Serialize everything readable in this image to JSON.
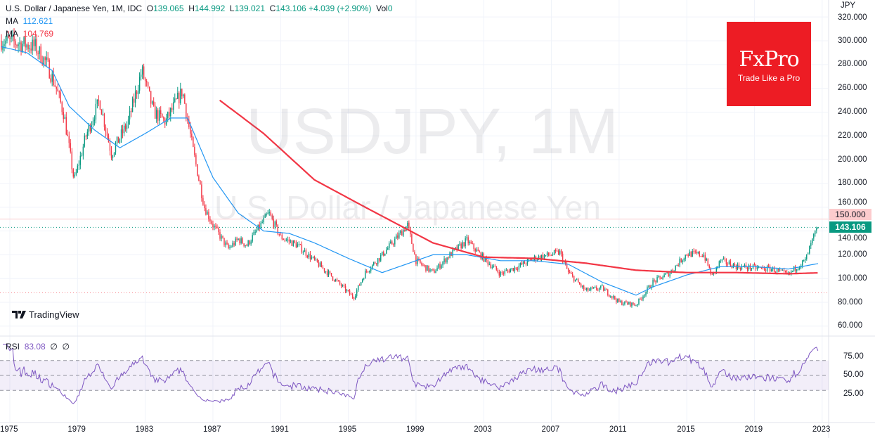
{
  "header": {
    "symbol": "U.S. Dollar / Japanese Yen, 1M, IDC",
    "open_label": "O",
    "open": "139.065",
    "high_label": "H",
    "high": "144.992",
    "low_label": "L",
    "low": "139.021",
    "close_label": "C",
    "close": "143.106",
    "change": "+4.039 (+2.90%)",
    "vol_label": "Vol",
    "vol": "0",
    "ma1_label": "MA",
    "ma1": "112.621",
    "ma2_label": "MA",
    "ma2": "104.769",
    "rsi_label": "RSI",
    "rsi": "83.08",
    "rsi_na1": "∅",
    "rsi_na2": "∅"
  },
  "watermark": {
    "line1": "USDJPY, 1M",
    "line2": "U.S. Dollar / Japanese Yen"
  },
  "logo": {
    "brand": "FxPro",
    "tagline": "Trade Like a Pro"
  },
  "tradingview": {
    "label": "TradingView"
  },
  "colors": {
    "up": "#089981",
    "down": "#f23645",
    "ma1": "#2196f3",
    "ma2": "#f23645",
    "rsi": "#7e57c2",
    "logo_bg": "#ed1c24"
  },
  "chart_data": {
    "type": "candlestick",
    "title": "USDJPY, 1M",
    "currency": "JPY",
    "price_axis": {
      "ticks": [
        "320.000",
        "300.000",
        "280.000",
        "260.000",
        "240.000",
        "220.000",
        "200.000",
        "180.000",
        "160.000",
        "140.000",
        "120.000",
        "100.000",
        "80.000",
        "60.000"
      ],
      "range": [
        55,
        322
      ]
    },
    "time_axis": {
      "ticks": [
        "1975",
        "1979",
        "1983",
        "1987",
        "1991",
        "1995",
        "1999",
        "2003",
        "2007",
        "2011",
        "2015",
        "2019",
        "2023"
      ]
    },
    "price_tags": {
      "alert": "150.000",
      "last": "143.106"
    },
    "close_keypoints": [
      [
        1974.5,
        300
      ],
      [
        1975.5,
        298
      ],
      [
        1976.5,
        295
      ],
      [
        1977.2,
        280
      ],
      [
        1977.7,
        262
      ],
      [
        1978.2,
        238
      ],
      [
        1978.8,
        182
      ],
      [
        1979.5,
        220
      ],
      [
        1980.3,
        250
      ],
      [
        1981.0,
        205
      ],
      [
        1982.0,
        232
      ],
      [
        1982.8,
        275
      ],
      [
        1983.5,
        240
      ],
      [
        1984.2,
        232
      ],
      [
        1985.2,
        258
      ],
      [
        1985.8,
        210
      ],
      [
        1986.5,
        160
      ],
      [
        1987.0,
        145
      ],
      [
        1987.9,
        125
      ],
      [
        1988.5,
        133
      ],
      [
        1989.0,
        128
      ],
      [
        1990.3,
        155
      ],
      [
        1991.0,
        135
      ],
      [
        1992.0,
        128
      ],
      [
        1993.0,
        115
      ],
      [
        1994.0,
        102
      ],
      [
        1995.3,
        84
      ],
      [
        1996.0,
        105
      ],
      [
        1997.0,
        120
      ],
      [
        1998.5,
        145
      ],
      [
        1999.0,
        115
      ],
      [
        2000.0,
        105
      ],
      [
        2001.0,
        120
      ],
      [
        2002.0,
        132
      ],
      [
        2003.0,
        117
      ],
      [
        2004.0,
        104
      ],
      [
        2005.0,
        110
      ],
      [
        2006.0,
        117
      ],
      [
        2007.5,
        122
      ],
      [
        2008.0,
        105
      ],
      [
        2009.0,
        90
      ],
      [
        2010.0,
        92
      ],
      [
        2011.0,
        80
      ],
      [
        2012.0,
        78
      ],
      [
        2013.0,
        97
      ],
      [
        2014.0,
        105
      ],
      [
        2015.0,
        121
      ],
      [
        2016.0,
        120
      ],
      [
        2016.5,
        102
      ],
      [
        2017.0,
        115
      ],
      [
        2018.0,
        110
      ],
      [
        2019.0,
        109
      ],
      [
        2020.0,
        108
      ],
      [
        2021.0,
        103
      ],
      [
        2021.5,
        110
      ],
      [
        2022.0,
        115
      ],
      [
        2022.5,
        135
      ],
      [
        2022.75,
        143.1
      ]
    ],
    "ma1_keypoints": [
      [
        1974.5,
        295
      ],
      [
        1976,
        290
      ],
      [
        1977.5,
        275
      ],
      [
        1978.5,
        245
      ],
      [
        1980,
        225
      ],
      [
        1981.5,
        210
      ],
      [
        1983,
        222
      ],
      [
        1984.5,
        235
      ],
      [
        1985.5,
        235
      ],
      [
        1987,
        185
      ],
      [
        1988.5,
        155
      ],
      [
        1990,
        140
      ],
      [
        1991.5,
        138
      ],
      [
        1993,
        130
      ],
      [
        1995,
        117
      ],
      [
        1997,
        105
      ],
      [
        1998,
        110
      ],
      [
        2000,
        120
      ],
      [
        2002,
        120
      ],
      [
        2004,
        115
      ],
      [
        2006,
        115
      ],
      [
        2008,
        112
      ],
      [
        2010,
        97
      ],
      [
        2012,
        86
      ],
      [
        2013,
        93
      ],
      [
        2015,
        103
      ],
      [
        2017,
        110
      ],
      [
        2019,
        110
      ],
      [
        2021,
        108
      ],
      [
        2022.75,
        112.6
      ]
    ],
    "ma2_keypoints": [
      [
        1987.4,
        250
      ],
      [
        1990,
        222
      ],
      [
        1993,
        183
      ],
      [
        1996,
        160
      ],
      [
        2000,
        130
      ],
      [
        2003,
        118
      ],
      [
        2006,
        117
      ],
      [
        2009,
        113
      ],
      [
        2012,
        107
      ],
      [
        2015,
        105
      ],
      [
        2018,
        105
      ],
      [
        2021,
        104
      ],
      [
        2022.75,
        104.8
      ]
    ],
    "rsi_axis": {
      "ticks": [
        "75.00",
        "50.00",
        "25.00"
      ],
      "bands": [
        30,
        70
      ]
    }
  }
}
